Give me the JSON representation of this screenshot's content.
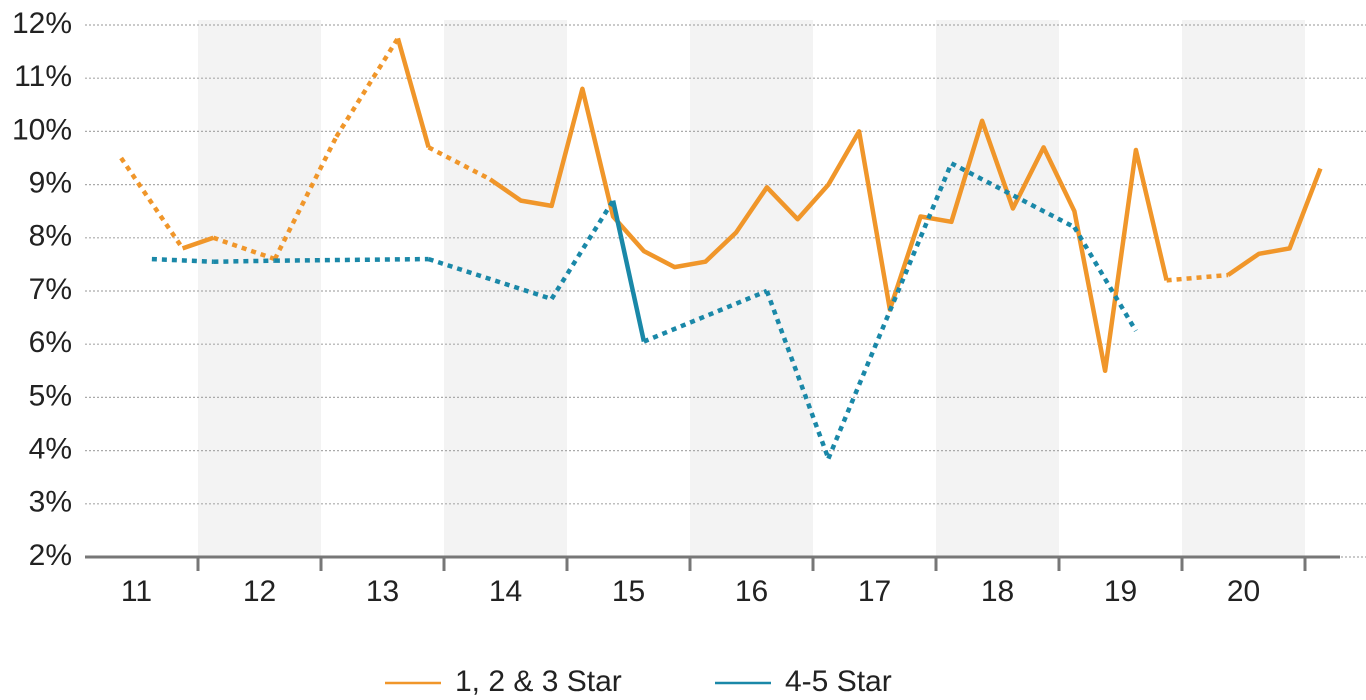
{
  "chart_data": {
    "type": "line",
    "x": [
      10.625,
      10.875,
      11.125,
      11.375,
      11.625,
      11.875,
      12.125,
      12.375,
      12.625,
      12.875,
      13.125,
      13.375,
      13.625,
      13.875,
      14.125,
      14.375,
      14.625,
      14.875,
      15.125,
      15.375,
      15.625,
      15.875,
      16.125,
      16.375,
      16.625,
      16.875,
      17.125,
      17.375,
      17.625,
      17.875,
      18.125,
      18.375,
      18.625,
      18.875,
      19.125,
      19.375,
      19.625,
      19.875,
      20.125,
      20.375,
      20.625
    ],
    "series": [
      {
        "name": "1, 2 & 3 Star",
        "color": "#f0962a",
        "values": [
          null,
          9.5,
          null,
          7.8,
          8.0,
          null,
          7.6,
          null,
          9.9,
          null,
          11.75,
          9.7,
          null,
          9.1,
          8.7,
          8.6,
          10.8,
          8.4,
          7.75,
          7.45,
          7.55,
          8.1,
          8.95,
          8.35,
          9.0,
          10.0,
          6.65,
          8.4,
          8.3,
          10.2,
          8.55,
          9.7,
          8.5,
          5.5,
          9.65,
          7.2,
          null,
          7.3,
          7.7,
          7.8,
          9.3
        ]
      },
      {
        "name": "4-5 Star",
        "color": "#1a88a8",
        "values": [
          null,
          null,
          7.6,
          null,
          7.55,
          null,
          7.57,
          null,
          null,
          null,
          null,
          7.6,
          null,
          null,
          null,
          6.85,
          null,
          8.7,
          6.05,
          null,
          null,
          null,
          7.0,
          null,
          3.85,
          null,
          null,
          null,
          9.4,
          null,
          null,
          null,
          8.2,
          null,
          6.25,
          null,
          null,
          null,
          null,
          null,
          null
        ]
      }
    ],
    "xlim": [
      10.5,
      20.5
    ],
    "xticks": [
      11,
      12,
      13,
      14,
      15,
      16,
      17,
      18,
      19,
      20
    ],
    "ylim": [
      2,
      12
    ],
    "yticks": [
      {
        "value": 2,
        "label": "2%"
      },
      {
        "value": 3,
        "label": "3%"
      },
      {
        "value": 4,
        "label": "4%"
      },
      {
        "value": 5,
        "label": "5%"
      },
      {
        "value": 6,
        "label": "6%"
      },
      {
        "value": 7,
        "label": "7%"
      },
      {
        "value": 8,
        "label": "8%"
      },
      {
        "value": 9,
        "label": "9%"
      },
      {
        "value": 10,
        "label": "10%"
      },
      {
        "value": 11,
        "label": "11%"
      },
      {
        "value": 12,
        "label": "12%"
      }
    ],
    "grid": true,
    "legend": "bottom"
  }
}
